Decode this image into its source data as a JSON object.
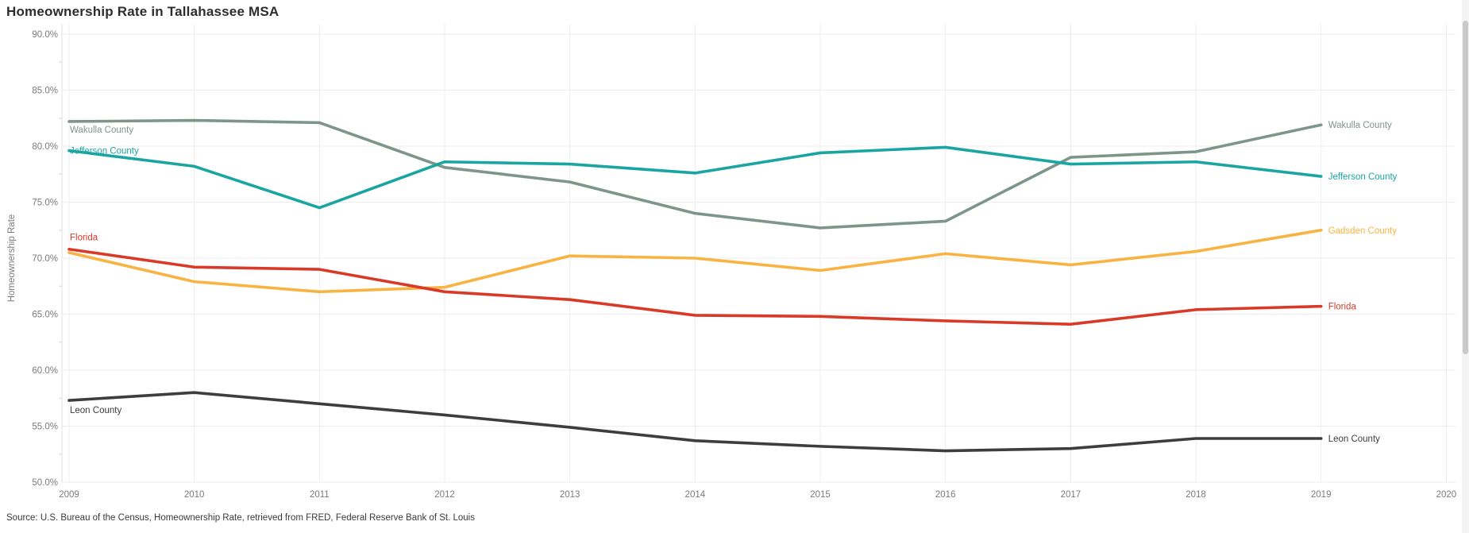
{
  "title": "Homeownership Rate in Tallahassee MSA",
  "source": "Source: U.S. Bureau of the Census, Homeownership Rate, retrieved from FRED, Federal Reserve Bank of St. Louis",
  "colors": {
    "grid": "#ececec",
    "axis_line": "#e0e0e0",
    "minor_tick": "#d8d8d8",
    "tick_text": "#7a7a7a",
    "title_text": "#2d2d2d"
  },
  "chart_data": {
    "type": "line",
    "title": "Homeownership Rate in Tallahassee MSA",
    "xlabel": "",
    "ylabel": "Homeownership Rate",
    "xlim": [
      2009,
      2020
    ],
    "ylim": [
      50,
      90
    ],
    "grid": true,
    "xtick_labels": [
      "2009",
      "2010",
      "2011",
      "2012",
      "2013",
      "2014",
      "2015",
      "2016",
      "2017",
      "2018",
      "2019",
      "2020"
    ],
    "ytick_values": [
      50,
      55,
      60,
      65,
      70,
      75,
      80,
      85,
      90
    ],
    "ytick_labels": [
      "50.0%",
      "55.0%",
      "60.0%",
      "65.0%",
      "70.0%",
      "75.0%",
      "80.0%",
      "85.0%",
      "90.0%"
    ],
    "x": [
      2009,
      2010,
      2011,
      2012,
      2013,
      2014,
      2015,
      2016,
      2017,
      2018,
      2019
    ],
    "series": [
      {
        "name": "Wakulla County",
        "color": "#7e958a",
        "left_label": "below",
        "right_label": true,
        "values": [
          82.2,
          82.3,
          82.1,
          78.1,
          76.8,
          74.0,
          72.7,
          73.3,
          79.0,
          79.5,
          81.9
        ]
      },
      {
        "name": "Jefferson County",
        "color": "#1aa5a2",
        "left_label": "overlap",
        "right_label": true,
        "values": [
          79.6,
          78.2,
          74.5,
          78.6,
          78.4,
          77.6,
          79.4,
          79.9,
          78.4,
          78.6,
          77.3
        ]
      },
      {
        "name": "Gadsden County",
        "color": "#f9b342",
        "left_label": null,
        "right_label": true,
        "values": [
          70.5,
          67.9,
          67.0,
          67.4,
          70.2,
          70.0,
          68.9,
          70.4,
          69.4,
          70.6,
          72.5
        ]
      },
      {
        "name": "Florida",
        "color": "#d93a27",
        "left_label": "above",
        "right_label": true,
        "values": [
          70.8,
          69.2,
          69.0,
          67.0,
          66.3,
          64.9,
          64.8,
          64.4,
          64.1,
          65.4,
          65.7
        ]
      },
      {
        "name": "Leon County",
        "color": "#3d3d3d",
        "left_label": "below",
        "right_label": true,
        "values": [
          57.3,
          58.0,
          57.0,
          56.0,
          54.9,
          53.7,
          53.2,
          52.8,
          53.0,
          53.9,
          53.9
        ]
      }
    ],
    "legend_position": "line-end-labels"
  }
}
